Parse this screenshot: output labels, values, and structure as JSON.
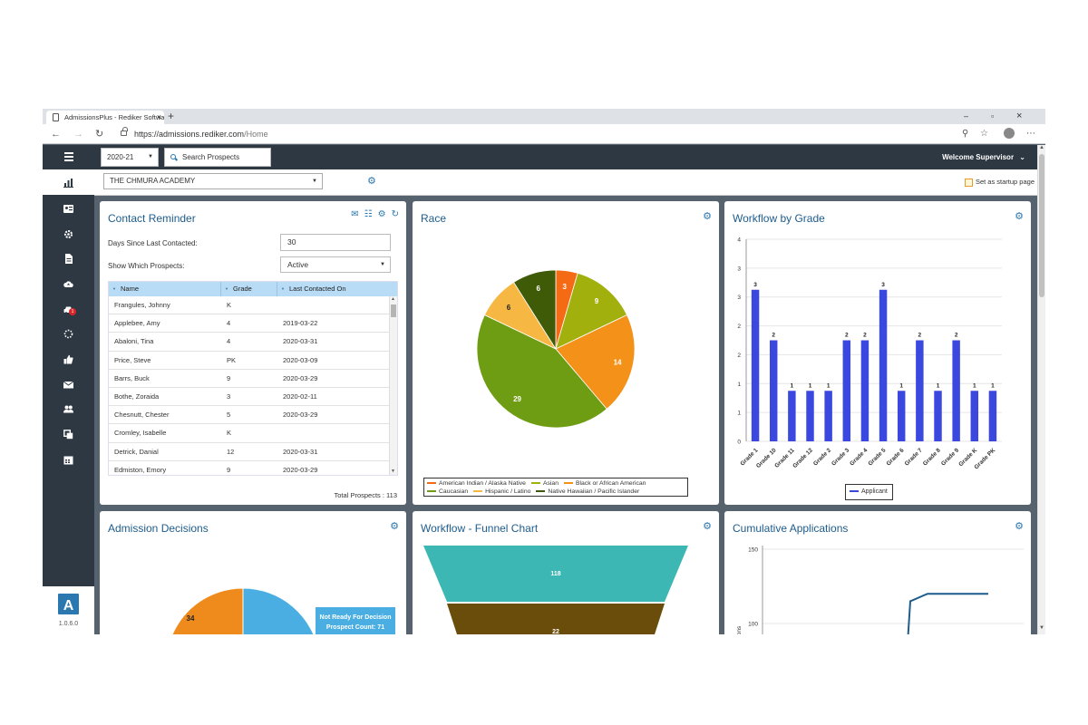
{
  "browser": {
    "tab_title": "AdmissionsPlus - Rediker Software",
    "tab_close": "×",
    "new_tab": "+",
    "url_host": "https://admissions.rediker.com",
    "url_path": "/Home",
    "min": "‒",
    "max": "▫",
    "close": "×"
  },
  "topbar": {
    "year": "2020-21",
    "search_placeholder": "Search Prospects",
    "welcome": "Welcome Supervisor"
  },
  "filterbar": {
    "school": "THE CHMURA ACADEMY",
    "startup": "Set as startup page"
  },
  "sidebar": {
    "icons": [
      "chart-icon",
      "contact-card-icon",
      "gear-icon",
      "document-icon",
      "cloud-upload-icon",
      "car-icon",
      "spinner-icon",
      "thumbs-up-icon",
      "envelope-icon",
      "users-icon",
      "copy-icon",
      "calendar-icon"
    ],
    "badge": "1",
    "logo": "A",
    "version": "1.0.6.0"
  },
  "contact_reminder": {
    "title": "Contact Reminder",
    "days_label": "Days Since Last Contacted:",
    "days_value": "30",
    "show_label": "Show Which Prospects:",
    "show_value": "Active",
    "columns": [
      "Name",
      "Grade",
      "Last Contacted On"
    ],
    "rows": [
      [
        "Frangules, Johnny",
        "K",
        ""
      ],
      [
        "Applebee, Amy",
        "4",
        "2019-03-22"
      ],
      [
        "Abaloni, Tina",
        "4",
        "2020-03-31"
      ],
      [
        "Price, Steve",
        "PK",
        "2020-03-09"
      ],
      [
        "Barrs, Buck",
        "9",
        "2020-03-29"
      ],
      [
        "Bothe, Zoraida",
        "3",
        "2020-02-11"
      ],
      [
        "Chesnutt, Chester",
        "5",
        "2020-03-29"
      ],
      [
        "Cromley, Isabelle",
        "K",
        ""
      ],
      [
        "Detrick, Danial",
        "12",
        "2020-03-31"
      ],
      [
        "Edmiston, Emory",
        "9",
        "2020-03-29"
      ]
    ],
    "total": "Total Prospects : 113"
  },
  "race": {
    "title": "Race",
    "chart_data": {
      "type": "pie",
      "labels": [
        "American Indian / Alaska Native",
        "Asian",
        "Black or African American",
        "Caucasian",
        "Hispanic / Latino",
        "Native Hawaiian / Pacific Islander"
      ],
      "values": [
        3,
        9,
        14,
        29,
        6,
        6
      ],
      "colors": [
        "#f56a14",
        "#a2b00e",
        "#f39119",
        "#6e9c12",
        "#f7b843",
        "#3f5b08"
      ],
      "legend_position": "bottom"
    }
  },
  "workflow_by_grade": {
    "title": "Workflow by Grade",
    "chart_data": {
      "type": "bar",
      "categories": [
        "Grade 1",
        "Grade 10",
        "Grade 11",
        "Grade 12",
        "Grade 2",
        "Grade 3",
        "Grade 4",
        "Grade 5",
        "Grade 6",
        "Grade 7",
        "Grade 8",
        "Grade 9",
        "Grade K",
        "Grade PK"
      ],
      "series": [
        {
          "name": "Applicant",
          "values": [
            3,
            2,
            1,
            1,
            1,
            2,
            2,
            3,
            1,
            2,
            1,
            2,
            1,
            1
          ],
          "color": "#3b48e0"
        }
      ],
      "ylim": [
        0,
        4
      ],
      "yticks": [
        "0",
        "1",
        "1",
        "2",
        "2",
        "3",
        "3",
        "4"
      ],
      "grid": true,
      "legend_position": "bottom"
    }
  },
  "admission_decisions": {
    "title": "Admission Decisions",
    "chart_data": {
      "type": "pie",
      "values": [
        34,
        71
      ],
      "colors": [
        "#ef8b1d",
        "#4aaee3"
      ],
      "tooltip_line1": "Not Ready For Decision",
      "tooltip_line2": "Prospect Count: 71"
    }
  },
  "funnel": {
    "title": "Workflow - Funnel Chart",
    "chart_data": {
      "type": "funnel",
      "values": [
        118,
        22
      ],
      "colors": [
        "#3db7b3",
        "#6a4d0b"
      ]
    }
  },
  "cumulative": {
    "title": "Cumulative Applications",
    "chart_data": {
      "type": "line",
      "yticks": [
        150,
        100
      ],
      "ylabel": "ons",
      "values": [
        30,
        115,
        120,
        120,
        120,
        120
      ],
      "color": "#1d5c8c"
    }
  }
}
